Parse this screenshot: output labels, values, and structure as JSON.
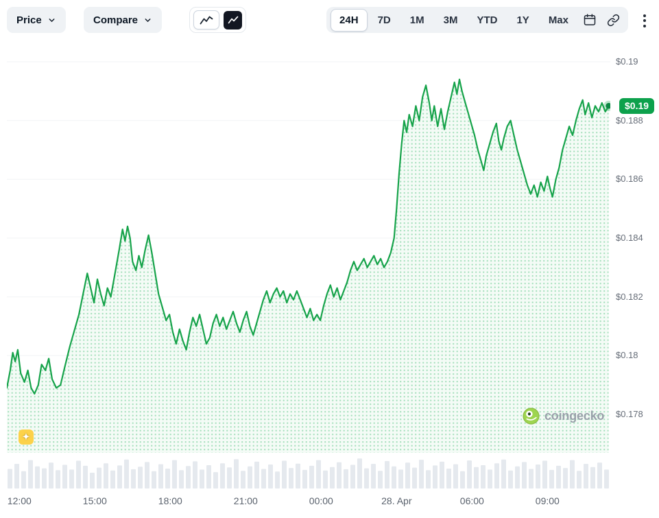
{
  "toolbar": {
    "price_label": "Price",
    "compare_label": "Compare",
    "chart_type": {
      "line_selected": true,
      "tradingview_selected": false
    },
    "ranges": [
      {
        "label": "24H",
        "selected": true
      },
      {
        "label": "7D",
        "selected": false
      },
      {
        "label": "1M",
        "selected": false
      },
      {
        "label": "3M",
        "selected": false
      },
      {
        "label": "YTD",
        "selected": false
      },
      {
        "label": "1Y",
        "selected": false
      },
      {
        "label": "Max",
        "selected": false
      }
    ],
    "icon_names": [
      "chevron-down",
      "line-chart",
      "tradingview",
      "calendar",
      "link",
      "kebab-menu"
    ]
  },
  "chart": {
    "current_price_badge": "$0.19",
    "watermark": "coingecko",
    "colors": {
      "line": "#16a34a",
      "dot": "#0b8742",
      "badge_bg": "#0da14c",
      "area_dot": "#a6e0bd",
      "area_bg": "#f4fbf6",
      "grid": "#f1f3f5",
      "volume_bar": "#e5e9ee",
      "axis_text": "#656c77",
      "sparkle_bg": "#fcd24a"
    }
  },
  "icons": {
    "sparkle_glyph": "✦"
  },
  "chart_data": {
    "type": "area",
    "title": "",
    "xlabel": "",
    "ylabel": "",
    "x_unit": "minutes since 11:30",
    "x_span": 1440,
    "ylim": [
      0.178,
      0.19
    ],
    "grid": true,
    "legend": false,
    "current_price": 0.19,
    "y_ticks": [
      {
        "value": 0.19,
        "label": "$0.19"
      },
      {
        "value": 0.188,
        "label": "$0.188"
      },
      {
        "value": 0.186,
        "label": "$0.186"
      },
      {
        "value": 0.184,
        "label": "$0.184"
      },
      {
        "value": 0.182,
        "label": "$0.182"
      },
      {
        "value": 0.18,
        "label": "$0.18"
      },
      {
        "value": 0.178,
        "label": "$0.178"
      }
    ],
    "x_ticks": [
      {
        "t": 30,
        "label": "12:00"
      },
      {
        "t": 210,
        "label": "15:00"
      },
      {
        "t": 390,
        "label": "18:00"
      },
      {
        "t": 570,
        "label": "21:00"
      },
      {
        "t": 750,
        "label": "00:00"
      },
      {
        "t": 930,
        "label": "28. Apr"
      },
      {
        "t": 1110,
        "label": "06:00"
      },
      {
        "t": 1290,
        "label": "09:00"
      }
    ],
    "points": [
      [
        0,
        0.1789
      ],
      [
        8,
        0.1795
      ],
      [
        14,
        0.1801
      ],
      [
        20,
        0.1798
      ],
      [
        26,
        0.1802
      ],
      [
        33,
        0.1794
      ],
      [
        42,
        0.1791
      ],
      [
        50,
        0.1795
      ],
      [
        58,
        0.1789
      ],
      [
        66,
        0.1787
      ],
      [
        75,
        0.179
      ],
      [
        83,
        0.1797
      ],
      [
        92,
        0.1795
      ],
      [
        100,
        0.1799
      ],
      [
        108,
        0.1792
      ],
      [
        118,
        0.1789
      ],
      [
        128,
        0.179
      ],
      [
        138,
        0.1796
      ],
      [
        150,
        0.1803
      ],
      [
        162,
        0.1809
      ],
      [
        172,
        0.1814
      ],
      [
        182,
        0.1821
      ],
      [
        192,
        0.1828
      ],
      [
        200,
        0.1823
      ],
      [
        208,
        0.1818
      ],
      [
        216,
        0.1826
      ],
      [
        224,
        0.1821
      ],
      [
        232,
        0.1817
      ],
      [
        240,
        0.1823
      ],
      [
        248,
        0.182
      ],
      [
        258,
        0.1828
      ],
      [
        268,
        0.1836
      ],
      [
        276,
        0.1843
      ],
      [
        282,
        0.1839
      ],
      [
        288,
        0.1844
      ],
      [
        294,
        0.184
      ],
      [
        300,
        0.1832
      ],
      [
        308,
        0.1829
      ],
      [
        315,
        0.1834
      ],
      [
        322,
        0.183
      ],
      [
        330,
        0.1836
      ],
      [
        338,
        0.1841
      ],
      [
        346,
        0.1835
      ],
      [
        354,
        0.1828
      ],
      [
        362,
        0.1821
      ],
      [
        372,
        0.1816
      ],
      [
        380,
        0.1812
      ],
      [
        388,
        0.1814
      ],
      [
        396,
        0.1808
      ],
      [
        404,
        0.1804
      ],
      [
        412,
        0.1809
      ],
      [
        420,
        0.1805
      ],
      [
        428,
        0.1802
      ],
      [
        436,
        0.1808
      ],
      [
        444,
        0.1813
      ],
      [
        452,
        0.181
      ],
      [
        460,
        0.1814
      ],
      [
        468,
        0.1809
      ],
      [
        476,
        0.1804
      ],
      [
        484,
        0.1806
      ],
      [
        492,
        0.1811
      ],
      [
        500,
        0.1814
      ],
      [
        508,
        0.181
      ],
      [
        516,
        0.1813
      ],
      [
        524,
        0.1809
      ],
      [
        532,
        0.1812
      ],
      [
        540,
        0.1815
      ],
      [
        548,
        0.1811
      ],
      [
        556,
        0.1808
      ],
      [
        564,
        0.1812
      ],
      [
        572,
        0.1815
      ],
      [
        580,
        0.181
      ],
      [
        588,
        0.1807
      ],
      [
        596,
        0.1811
      ],
      [
        604,
        0.1815
      ],
      [
        612,
        0.1819
      ],
      [
        620,
        0.1822
      ],
      [
        628,
        0.1818
      ],
      [
        636,
        0.1821
      ],
      [
        644,
        0.1823
      ],
      [
        652,
        0.182
      ],
      [
        660,
        0.1822
      ],
      [
        668,
        0.1818
      ],
      [
        676,
        0.1821
      ],
      [
        684,
        0.1819
      ],
      [
        692,
        0.1822
      ],
      [
        700,
        0.1819
      ],
      [
        708,
        0.1816
      ],
      [
        716,
        0.1813
      ],
      [
        724,
        0.1816
      ],
      [
        732,
        0.1812
      ],
      [
        740,
        0.1814
      ],
      [
        748,
        0.1812
      ],
      [
        756,
        0.1817
      ],
      [
        764,
        0.1821
      ],
      [
        772,
        0.1824
      ],
      [
        780,
        0.182
      ],
      [
        788,
        0.1823
      ],
      [
        796,
        0.1819
      ],
      [
        804,
        0.1822
      ],
      [
        812,
        0.1825
      ],
      [
        820,
        0.1829
      ],
      [
        828,
        0.1832
      ],
      [
        836,
        0.1829
      ],
      [
        844,
        0.1831
      ],
      [
        852,
        0.1833
      ],
      [
        860,
        0.183
      ],
      [
        868,
        0.1832
      ],
      [
        876,
        0.1834
      ],
      [
        884,
        0.1831
      ],
      [
        892,
        0.1833
      ],
      [
        900,
        0.183
      ],
      [
        908,
        0.1832
      ],
      [
        916,
        0.1835
      ],
      [
        924,
        0.184
      ],
      [
        930,
        0.185
      ],
      [
        936,
        0.1862
      ],
      [
        942,
        0.1872
      ],
      [
        948,
        0.188
      ],
      [
        954,
        0.1876
      ],
      [
        960,
        0.1882
      ],
      [
        968,
        0.1878
      ],
      [
        976,
        0.1885
      ],
      [
        984,
        0.188
      ],
      [
        992,
        0.1888
      ],
      [
        1000,
        0.1892
      ],
      [
        1008,
        0.1886
      ],
      [
        1014,
        0.188
      ],
      [
        1020,
        0.1885
      ],
      [
        1028,
        0.1878
      ],
      [
        1036,
        0.1884
      ],
      [
        1044,
        0.1877
      ],
      [
        1052,
        0.1883
      ],
      [
        1060,
        0.1888
      ],
      [
        1068,
        0.1893
      ],
      [
        1074,
        0.1889
      ],
      [
        1080,
        0.1894
      ],
      [
        1086,
        0.189
      ],
      [
        1092,
        0.1887
      ],
      [
        1100,
        0.1883
      ],
      [
        1108,
        0.1879
      ],
      [
        1116,
        0.1875
      ],
      [
        1124,
        0.187
      ],
      [
        1132,
        0.1866
      ],
      [
        1138,
        0.1863
      ],
      [
        1144,
        0.1868
      ],
      [
        1152,
        0.1872
      ],
      [
        1160,
        0.1876
      ],
      [
        1168,
        0.1879
      ],
      [
        1174,
        0.1873
      ],
      [
        1180,
        0.187
      ],
      [
        1186,
        0.1874
      ],
      [
        1194,
        0.1878
      ],
      [
        1202,
        0.188
      ],
      [
        1210,
        0.1875
      ],
      [
        1218,
        0.187
      ],
      [
        1226,
        0.1866
      ],
      [
        1234,
        0.1862
      ],
      [
        1242,
        0.1858
      ],
      [
        1250,
        0.1855
      ],
      [
        1258,
        0.1858
      ],
      [
        1266,
        0.1854
      ],
      [
        1274,
        0.1859
      ],
      [
        1282,
        0.1856
      ],
      [
        1290,
        0.1861
      ],
      [
        1296,
        0.1857
      ],
      [
        1302,
        0.1854
      ],
      [
        1310,
        0.186
      ],
      [
        1318,
        0.1864
      ],
      [
        1326,
        0.187
      ],
      [
        1334,
        0.1874
      ],
      [
        1342,
        0.1878
      ],
      [
        1350,
        0.1875
      ],
      [
        1358,
        0.188
      ],
      [
        1366,
        0.1884
      ],
      [
        1374,
        0.1887
      ],
      [
        1380,
        0.1882
      ],
      [
        1388,
        0.1886
      ],
      [
        1396,
        0.1881
      ],
      [
        1404,
        0.1885
      ],
      [
        1412,
        0.1883
      ],
      [
        1420,
        0.1886
      ],
      [
        1428,
        0.1883
      ],
      [
        1436,
        0.1885
      ]
    ],
    "volume_rel": [
      0.62,
      0.78,
      0.55,
      0.9,
      0.7,
      0.64,
      0.82,
      0.58,
      0.75,
      0.6,
      0.88,
      0.72,
      0.5,
      0.66,
      0.8,
      0.57,
      0.73,
      0.92,
      0.61,
      0.69,
      0.84,
      0.55,
      0.77,
      0.63,
      0.9,
      0.58,
      0.71,
      0.86,
      0.6,
      0.74,
      0.52,
      0.8,
      0.67,
      0.93,
      0.56,
      0.7,
      0.85,
      0.62,
      0.76,
      0.54,
      0.88,
      0.65,
      0.79,
      0.59,
      0.72,
      0.9,
      0.57,
      0.68,
      0.83,
      0.61,
      0.75,
      0.95,
      0.64,
      0.78,
      0.56,
      0.87,
      0.7,
      0.6,
      0.82,
      0.66,
      0.91,
      0.58,
      0.73,
      0.85,
      0.63,
      0.77,
      0.55,
      0.89,
      0.68,
      0.74,
      0.6,
      0.8,
      0.92,
      0.57,
      0.7,
      0.84,
      0.62,
      0.76,
      0.88,
      0.59,
      0.72,
      0.65,
      0.9,
      0.56,
      0.78,
      0.68,
      0.82,
      0.6
    ]
  }
}
